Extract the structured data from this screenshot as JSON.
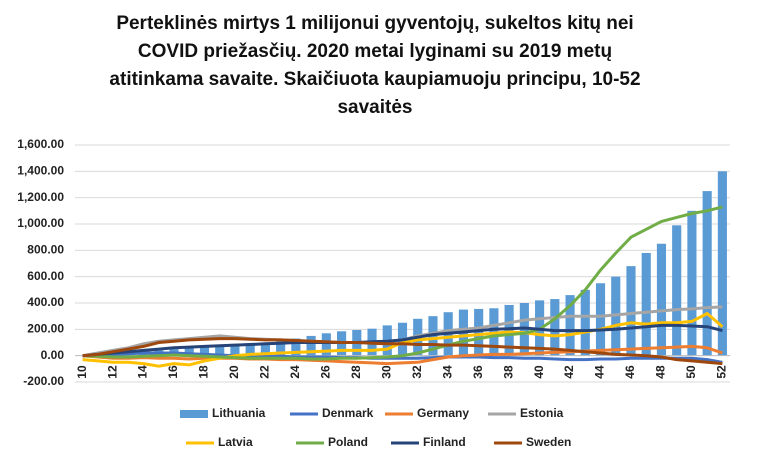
{
  "chart_data": {
    "type": "bar-line",
    "title": [
      "Perteklinės mirtys 1 milijonui gyventojų, sukeltos kitų nei",
      "COVID priežasčių.  2020 metai lyginami su 2019 metų",
      "atitinkama savaite. Skaičiuota kaupiamuoju principu, 10-52",
      "savaitės"
    ],
    "categories": [
      10,
      null,
      12,
      null,
      14,
      null,
      16,
      null,
      18,
      null,
      20,
      null,
      22,
      null,
      24,
      null,
      26,
      null,
      28,
      null,
      30,
      null,
      32,
      null,
      34,
      null,
      36,
      null,
      38,
      null,
      40,
      null,
      42,
      null,
      44,
      null,
      46,
      null,
      48,
      null,
      50,
      null,
      52
    ],
    "series": [
      {
        "name": "Lithuania",
        "type": "bar",
        "color": "#5b9bd5",
        "values": [
          0,
          5,
          10,
          20,
          30,
          40,
          50,
          60,
          70,
          80,
          90,
          95,
          100,
          110,
          130,
          150,
          170,
          185,
          195,
          205,
          230,
          250,
          280,
          300,
          330,
          350,
          355,
          360,
          385,
          400,
          420,
          430,
          460,
          500,
          550,
          600,
          680,
          780,
          850,
          990,
          1100,
          1250,
          1400
        ]
      },
      {
        "name": "Denmark",
        "type": "line",
        "color": "#4472c4",
        "values": [
          0,
          5,
          10,
          15,
          20,
          20,
          20,
          15,
          10,
          5,
          0,
          -5,
          -5,
          -5,
          -10,
          -10,
          -10,
          -15,
          -15,
          -20,
          -20,
          -20,
          -20,
          -15,
          -10,
          -10,
          -10,
          -15,
          -15,
          -20,
          -20,
          -25,
          -30,
          -30,
          -25,
          -25,
          -20,
          -20,
          -20,
          -20,
          -20,
          -30,
          -50
        ]
      },
      {
        "name": "Germany",
        "type": "line",
        "color": "#ed7d31",
        "values": [
          0,
          -10,
          -20,
          -20,
          -15,
          -20,
          -20,
          -25,
          -20,
          -20,
          -20,
          -25,
          -25,
          -30,
          -30,
          -35,
          -40,
          -45,
          -50,
          -55,
          -60,
          -55,
          -50,
          -30,
          -10,
          0,
          5,
          10,
          10,
          15,
          20,
          25,
          30,
          35,
          40,
          45,
          50,
          55,
          60,
          65,
          70,
          60,
          20
        ]
      },
      {
        "name": "Estonia",
        "type": "line",
        "color": "#a5a5a5",
        "values": [
          0,
          20,
          40,
          60,
          90,
          110,
          120,
          130,
          140,
          150,
          140,
          130,
          125,
          120,
          115,
          110,
          105,
          100,
          100,
          100,
          105,
          120,
          150,
          170,
          190,
          200,
          210,
          230,
          250,
          270,
          280,
          290,
          300,
          300,
          300,
          310,
          320,
          330,
          340,
          350,
          355,
          365,
          370
        ]
      },
      {
        "name": "Latvia",
        "type": "line",
        "color": "#ffc000",
        "values": [
          -30,
          -40,
          -50,
          -50,
          -60,
          -80,
          -60,
          -70,
          -40,
          -20,
          0,
          10,
          15,
          20,
          25,
          30,
          35,
          40,
          40,
          40,
          50,
          100,
          120,
          130,
          140,
          150,
          160,
          170,
          180,
          175,
          160,
          150,
          160,
          180,
          200,
          230,
          250,
          240,
          250,
          250,
          260,
          320,
          220
        ]
      },
      {
        "name": "Poland",
        "type": "line",
        "color": "#70ad47",
        "values": [
          0,
          -5,
          -10,
          -10,
          -5,
          0,
          5,
          0,
          -5,
          -10,
          -15,
          -20,
          -20,
          -20,
          -20,
          -25,
          -25,
          -20,
          -20,
          -15,
          -10,
          0,
          20,
          50,
          80,
          110,
          130,
          150,
          160,
          170,
          200,
          280,
          380,
          500,
          650,
          780,
          900,
          960,
          1020,
          1050,
          1080,
          1100,
          1130
        ]
      },
      {
        "name": "Finland",
        "type": "line",
        "color": "#264478",
        "values": [
          0,
          10,
          20,
          30,
          40,
          50,
          60,
          65,
          70,
          75,
          80,
          85,
          90,
          95,
          100,
          100,
          100,
          100,
          100,
          105,
          110,
          120,
          140,
          160,
          170,
          180,
          190,
          200,
          205,
          210,
          200,
          190,
          190,
          190,
          195,
          200,
          210,
          220,
          230,
          230,
          225,
          220,
          190
        ]
      },
      {
        "name": "Sweden",
        "type": "line",
        "color": "#9e480e",
        "values": [
          0,
          10,
          30,
          50,
          70,
          100,
          110,
          120,
          125,
          130,
          130,
          125,
          120,
          120,
          115,
          110,
          105,
          100,
          100,
          95,
          90,
          90,
          85,
          85,
          80,
          80,
          75,
          70,
          65,
          60,
          55,
          50,
          40,
          30,
          20,
          10,
          5,
          0,
          -10,
          -30,
          -40,
          -50,
          -60
        ]
      }
    ],
    "ylim": [
      -200,
      1600
    ],
    "yticks": [
      {
        "value": -200,
        "label": "-200.00"
      },
      {
        "value": 0,
        "label": "0.00"
      },
      {
        "value": 200,
        "label": "200.00"
      },
      {
        "value": 400,
        "label": "400.00"
      },
      {
        "value": 600,
        "label": "600.00"
      },
      {
        "value": 800,
        "label": "800.00"
      },
      {
        "value": 1000,
        "label": "1,000.00"
      },
      {
        "value": 1200,
        "label": "1,200.00"
      },
      {
        "value": 1400,
        "label": "1,400.00"
      },
      {
        "value": 1600,
        "label": "1,600.00"
      }
    ],
    "grid": true,
    "legend": "bottom"
  }
}
